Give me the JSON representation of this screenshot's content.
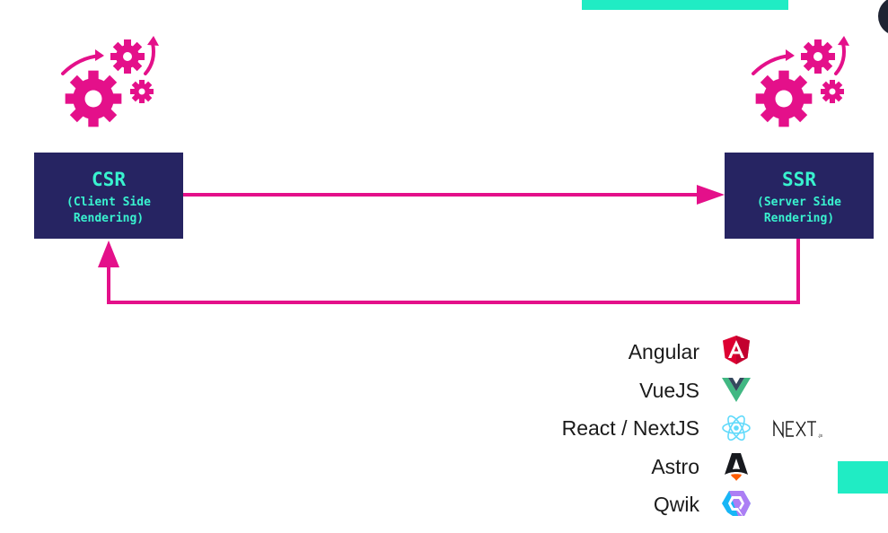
{
  "diagram": {
    "csr": {
      "abbr": "CSR",
      "full": "(Client Side\nRendering)",
      "box_color": "#262462",
      "text_color": "#39f2cf"
    },
    "ssr": {
      "abbr": "SSR",
      "full": "(Server Side\nRendering)",
      "box_color": "#262462",
      "text_color": "#39f2cf"
    },
    "arrow_color": "#e4108a",
    "gear_color": "#e4108a",
    "accent_color": "#20ecc4",
    "edges": [
      {
        "from": "csr",
        "to": "ssr"
      },
      {
        "from": "ssr",
        "to": "csr"
      }
    ]
  },
  "frameworks": [
    {
      "name": "Angular",
      "icon": "angular-icon"
    },
    {
      "name": "VueJS",
      "icon": "vue-icon"
    },
    {
      "name": "React / NextJS",
      "icon": "react-icon",
      "extra_icon": "nextjs-logo"
    },
    {
      "name": "Astro",
      "icon": "astro-icon"
    },
    {
      "name": "Qwik",
      "icon": "qwik-icon"
    }
  ]
}
